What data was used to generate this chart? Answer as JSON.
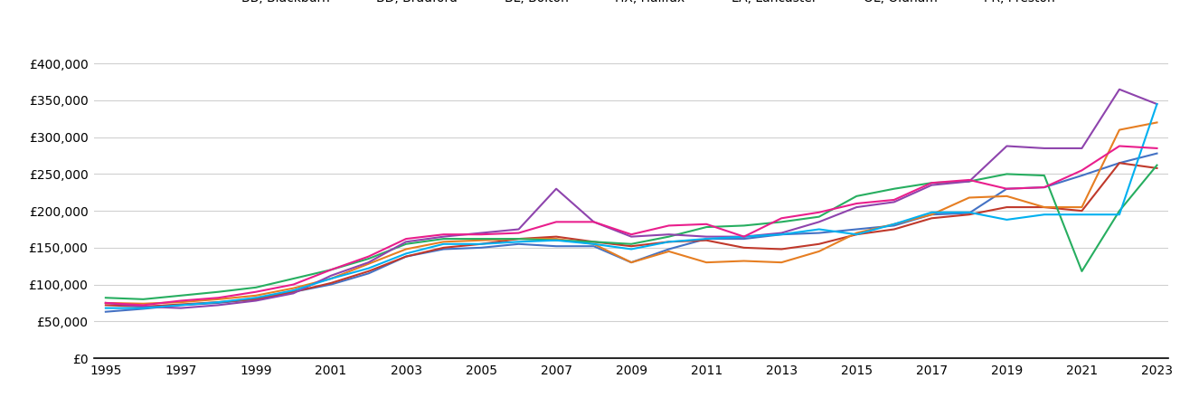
{
  "years": [
    1995,
    1996,
    1997,
    1998,
    1999,
    2000,
    2001,
    2002,
    2003,
    2004,
    2005,
    2006,
    2007,
    2008,
    2009,
    2010,
    2011,
    2012,
    2013,
    2014,
    2015,
    2016,
    2017,
    2018,
    2019,
    2020,
    2021,
    2022,
    2023
  ],
  "series": {
    "BB, Blackburn": {
      "color": "#4472c4",
      "values": [
        63000,
        67000,
        72000,
        75000,
        80000,
        90000,
        100000,
        115000,
        138000,
        148000,
        150000,
        155000,
        152000,
        152000,
        130000,
        148000,
        162000,
        162000,
        168000,
        170000,
        175000,
        180000,
        195000,
        197000,
        230000,
        232000,
        248000,
        265000,
        278000
      ]
    },
    "BD, Bradford": {
      "color": "#c0392b",
      "values": [
        72000,
        70000,
        73000,
        76000,
        80000,
        90000,
        102000,
        118000,
        138000,
        150000,
        155000,
        162000,
        165000,
        158000,
        152000,
        158000,
        160000,
        150000,
        148000,
        155000,
        168000,
        175000,
        190000,
        195000,
        205000,
        205000,
        200000,
        265000,
        258000
      ]
    },
    "BL, Bolton": {
      "color": "#e67e22",
      "values": [
        75000,
        74000,
        76000,
        80000,
        85000,
        95000,
        108000,
        128000,
        148000,
        158000,
        160000,
        162000,
        162000,
        155000,
        130000,
        145000,
        130000,
        132000,
        130000,
        145000,
        170000,
        182000,
        195000,
        218000,
        220000,
        205000,
        205000,
        310000,
        320000
      ]
    },
    "HX, Halifax": {
      "color": "#27ae60",
      "values": [
        82000,
        80000,
        85000,
        90000,
        96000,
        108000,
        120000,
        135000,
        155000,
        162000,
        162000,
        162000,
        160000,
        158000,
        155000,
        165000,
        178000,
        180000,
        185000,
        192000,
        220000,
        230000,
        238000,
        240000,
        250000,
        248000,
        118000,
        200000,
        262000
      ]
    },
    "LA, Lancaster": {
      "color": "#8e44ad",
      "values": [
        75000,
        70000,
        68000,
        72000,
        78000,
        88000,
        112000,
        130000,
        158000,
        165000,
        170000,
        175000,
        230000,
        185000,
        165000,
        168000,
        165000,
        165000,
        170000,
        185000,
        205000,
        212000,
        235000,
        240000,
        288000,
        285000,
        285000,
        365000,
        345000
      ]
    },
    "OL, Oldham": {
      "color": "#00b0f0",
      "values": [
        68000,
        68000,
        72000,
        76000,
        82000,
        92000,
        108000,
        122000,
        142000,
        155000,
        155000,
        158000,
        160000,
        155000,
        148000,
        158000,
        162000,
        165000,
        168000,
        175000,
        168000,
        182000,
        198000,
        198000,
        188000,
        195000,
        195000,
        195000,
        345000
      ]
    },
    "PR, Preston": {
      "color": "#e91e8c",
      "values": [
        75000,
        72000,
        78000,
        82000,
        90000,
        100000,
        120000,
        138000,
        162000,
        168000,
        168000,
        170000,
        185000,
        185000,
        168000,
        180000,
        182000,
        165000,
        190000,
        198000,
        210000,
        215000,
        238000,
        242000,
        230000,
        232000,
        255000,
        288000,
        285000
      ]
    }
  },
  "ylim": [
    0,
    420000
  ],
  "yticks": [
    0,
    50000,
    100000,
    150000,
    200000,
    250000,
    300000,
    350000,
    400000
  ],
  "ytick_labels": [
    "£0",
    "£50,000",
    "£100,000",
    "£150,000",
    "£200,000",
    "£250,000",
    "£300,000",
    "£350,000",
    "£400,000"
  ],
  "xticks": [
    1995,
    1997,
    1999,
    2001,
    2003,
    2005,
    2007,
    2009,
    2011,
    2013,
    2015,
    2017,
    2019,
    2021,
    2023
  ],
  "background_color": "#ffffff",
  "grid_color": "#d0d0d0",
  "legend_ncol": 7
}
